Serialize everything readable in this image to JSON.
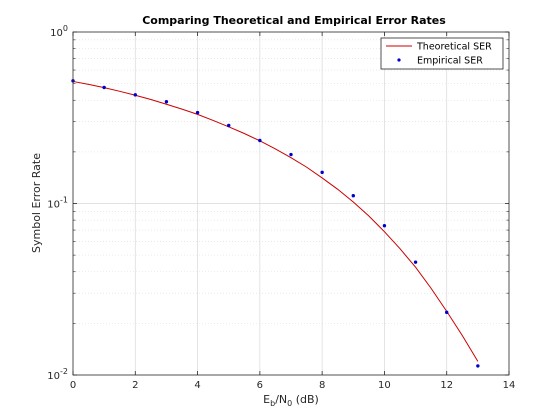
{
  "chart_data": {
    "type": "line",
    "title": "Comparing Theoretical and Empirical Error Rates",
    "xlabel_main": "E",
    "xlabel_sub1": "b",
    "xlabel_mid": "/N",
    "xlabel_sub2": "0",
    "xlabel_tail": " (dB)",
    "ylabel": "Symbol Error Rate",
    "xlim": [
      0,
      14
    ],
    "ylim": [
      0.01,
      1
    ],
    "yscale": "log",
    "grid": true,
    "legend_position": "top-right",
    "x_ticks": [
      "0",
      "2",
      "4",
      "6",
      "8",
      "10",
      "12",
      "14"
    ],
    "y_ticks": [
      {
        "base": "10",
        "exp": "0"
      },
      {
        "base": "10",
        "exp": "-1"
      },
      {
        "base": "10",
        "exp": "-2"
      }
    ],
    "series": [
      {
        "name": "Theoretical SER",
        "style": "line",
        "color": "#cc0000",
        "x": [
          0,
          0.5,
          1,
          1.5,
          2,
          2.5,
          3,
          3.5,
          4,
          4.5,
          5,
          5.5,
          6,
          6.5,
          7,
          7.5,
          8,
          8.5,
          9,
          9.5,
          10,
          10.5,
          11,
          11.5,
          12,
          12.5,
          13
        ],
        "y": [
          0.515,
          0.495,
          0.474,
          0.451,
          0.428,
          0.404,
          0.379,
          0.355,
          0.331,
          0.305,
          0.28,
          0.256,
          0.232,
          0.208,
          0.185,
          0.163,
          0.141,
          0.121,
          0.102,
          0.0845,
          0.0685,
          0.0545,
          0.0425,
          0.032,
          0.0235,
          0.017,
          0.012
        ]
      },
      {
        "name": "Empirical SER",
        "style": "markers",
        "color": "#0000cc",
        "x": [
          0,
          1,
          2,
          3,
          4,
          5,
          6,
          7,
          8,
          9,
          10,
          11,
          12,
          13
        ],
        "y": [
          0.519,
          0.475,
          0.43,
          0.392,
          0.339,
          0.285,
          0.233,
          0.193,
          0.152,
          0.111,
          0.0742,
          0.0455,
          0.0232,
          0.0113
        ]
      }
    ]
  }
}
